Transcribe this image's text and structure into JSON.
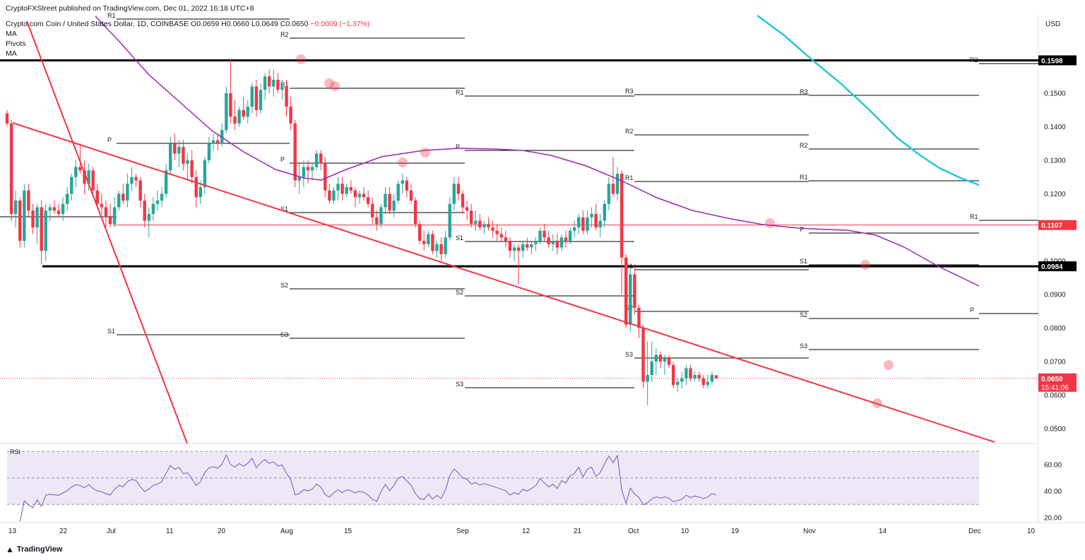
{
  "header": {
    "publisher": "CryptoFXStreet published on TradingView.com, Dec 01, 2022 16:18 UTC+8",
    "symbol": "Crypto.com Coin / United States Dollar, 1D, COINBASE",
    "ohlc_open": "O0.0659",
    "ohlc_high": "H0.0660",
    "ohlc_low": "L0.0649",
    "ohlc_close": "C0.0650",
    "ohlc_change": "−0.0009 (−1.37%)",
    "indicators": [
      "MA",
      "Pivots",
      "MA"
    ]
  },
  "currency": "USD",
  "footer_logo": "TradingView",
  "colors": {
    "up": "#26a69a",
    "down": "#f23645",
    "ma_slow": "#26c6da",
    "ma_fast": "#9c27b0",
    "trendline": "#f23645",
    "rsi": "#7e57c2",
    "rsi_band": "#ede7f6"
  },
  "chart_data": {
    "type": "candlestick",
    "y_axis_labels": [
      "0.1500",
      "0.1400",
      "0.1300",
      "0.1200",
      "0.1000",
      "0.0900",
      "0.0800",
      "0.0700",
      "0.0600",
      "0.0500"
    ],
    "ylim": [
      0.045,
      0.1715
    ],
    "x_axis_labels": [
      "13",
      "22",
      "Jul",
      "11",
      "20",
      "Aug",
      "15",
      "Sep",
      "12",
      "21",
      "Oct",
      "10",
      "19",
      "Nov",
      "14",
      "Dec",
      "10"
    ],
    "price_tags": {
      "upper_level": "0.1598",
      "red_level": "0.1107",
      "lower_level": "0.0984",
      "last_price": "0.0650",
      "countdown": "15:41:06"
    },
    "horizontal_levels": [
      0.1598,
      0.0984,
      0.1107
    ],
    "candles": [
      [
        0.144,
        0.145,
        0.14,
        0.141
      ],
      [
        0.141,
        0.142,
        0.112,
        0.114
      ],
      [
        0.114,
        0.121,
        0.11,
        0.118
      ],
      [
        0.118,
        0.119,
        0.104,
        0.106
      ],
      [
        0.106,
        0.123,
        0.104,
        0.121
      ],
      [
        0.121,
        0.123,
        0.113,
        0.115
      ],
      [
        0.115,
        0.117,
        0.108,
        0.11
      ],
      [
        0.11,
        0.117,
        0.105,
        0.116
      ],
      [
        0.116,
        0.118,
        0.099,
        0.103
      ],
      [
        0.103,
        0.117,
        0.1,
        0.115
      ],
      [
        0.115,
        0.117,
        0.112,
        0.116
      ],
      [
        0.116,
        0.118,
        0.114,
        0.115
      ],
      [
        0.115,
        0.117,
        0.113,
        0.114
      ],
      [
        0.114,
        0.119,
        0.112,
        0.117
      ],
      [
        0.117,
        0.122,
        0.115,
        0.12
      ],
      [
        0.12,
        0.126,
        0.118,
        0.125
      ],
      [
        0.125,
        0.13,
        0.122,
        0.128
      ],
      [
        0.128,
        0.135,
        0.126,
        0.127
      ],
      [
        0.127,
        0.13,
        0.12,
        0.123
      ],
      [
        0.123,
        0.129,
        0.121,
        0.127
      ],
      [
        0.127,
        0.128,
        0.12,
        0.121
      ],
      [
        0.121,
        0.123,
        0.116,
        0.117
      ],
      [
        0.117,
        0.12,
        0.114,
        0.116
      ],
      [
        0.116,
        0.118,
        0.11,
        0.113
      ],
      [
        0.113,
        0.117,
        0.11,
        0.111
      ],
      [
        0.111,
        0.119,
        0.11,
        0.116
      ],
      [
        0.116,
        0.121,
        0.115,
        0.12
      ],
      [
        0.12,
        0.123,
        0.117,
        0.118
      ],
      [
        0.118,
        0.126,
        0.116,
        0.123
      ],
      [
        0.123,
        0.128,
        0.121,
        0.125
      ],
      [
        0.125,
        0.126,
        0.122,
        0.124
      ],
      [
        0.124,
        0.125,
        0.116,
        0.118
      ],
      [
        0.118,
        0.12,
        0.11,
        0.112
      ],
      [
        0.112,
        0.116,
        0.107,
        0.114
      ],
      [
        0.114,
        0.119,
        0.112,
        0.117
      ],
      [
        0.117,
        0.121,
        0.115,
        0.118
      ],
      [
        0.118,
        0.122,
        0.116,
        0.12
      ],
      [
        0.12,
        0.129,
        0.119,
        0.127
      ],
      [
        0.127,
        0.137,
        0.126,
        0.135
      ],
      [
        0.135,
        0.138,
        0.13,
        0.132
      ],
      [
        0.132,
        0.136,
        0.128,
        0.134
      ],
      [
        0.134,
        0.136,
        0.127,
        0.129
      ],
      [
        0.129,
        0.132,
        0.124,
        0.13
      ],
      [
        0.13,
        0.133,
        0.123,
        0.125
      ],
      [
        0.125,
        0.127,
        0.116,
        0.119
      ],
      [
        0.119,
        0.124,
        0.117,
        0.122
      ],
      [
        0.122,
        0.131,
        0.12,
        0.13
      ],
      [
        0.13,
        0.137,
        0.129,
        0.135
      ],
      [
        0.135,
        0.138,
        0.133,
        0.136
      ],
      [
        0.136,
        0.138,
        0.133,
        0.135
      ],
      [
        0.135,
        0.141,
        0.134,
        0.139
      ],
      [
        0.139,
        0.152,
        0.138,
        0.15
      ],
      [
        0.15,
        0.16,
        0.141,
        0.143
      ],
      [
        0.143,
        0.148,
        0.139,
        0.141
      ],
      [
        0.141,
        0.146,
        0.14,
        0.145
      ],
      [
        0.145,
        0.149,
        0.142,
        0.143
      ],
      [
        0.143,
        0.148,
        0.141,
        0.146
      ],
      [
        0.146,
        0.153,
        0.144,
        0.152
      ],
      [
        0.152,
        0.154,
        0.143,
        0.145
      ],
      [
        0.145,
        0.153,
        0.144,
        0.151
      ],
      [
        0.151,
        0.156,
        0.148,
        0.155
      ],
      [
        0.155,
        0.157,
        0.15,
        0.152
      ],
      [
        0.152,
        0.157,
        0.149,
        0.154
      ],
      [
        0.154,
        0.156,
        0.15,
        0.151
      ],
      [
        0.151,
        0.154,
        0.148,
        0.152
      ],
      [
        0.152,
        0.154,
        0.143,
        0.146
      ],
      [
        0.146,
        0.149,
        0.139,
        0.141
      ],
      [
        0.141,
        0.142,
        0.122,
        0.124
      ],
      [
        0.124,
        0.129,
        0.12,
        0.125
      ],
      [
        0.125,
        0.13,
        0.122,
        0.128
      ],
      [
        0.128,
        0.13,
        0.123,
        0.127
      ],
      [
        0.127,
        0.129,
        0.124,
        0.128
      ],
      [
        0.128,
        0.133,
        0.127,
        0.132
      ],
      [
        0.132,
        0.133,
        0.127,
        0.129
      ],
      [
        0.129,
        0.131,
        0.119,
        0.121
      ],
      [
        0.121,
        0.123,
        0.117,
        0.118
      ],
      [
        0.118,
        0.122,
        0.117,
        0.121
      ],
      [
        0.121,
        0.125,
        0.118,
        0.123
      ],
      [
        0.123,
        0.125,
        0.118,
        0.12
      ],
      [
        0.12,
        0.123,
        0.119,
        0.122
      ],
      [
        0.122,
        0.124,
        0.12,
        0.121
      ],
      [
        0.121,
        0.122,
        0.116,
        0.119
      ],
      [
        0.119,
        0.121,
        0.117,
        0.12
      ],
      [
        0.12,
        0.122,
        0.118,
        0.119
      ],
      [
        0.119,
        0.121,
        0.116,
        0.117
      ],
      [
        0.117,
        0.119,
        0.111,
        0.113
      ],
      [
        0.113,
        0.115,
        0.109,
        0.111
      ],
      [
        0.111,
        0.117,
        0.11,
        0.116
      ],
      [
        0.116,
        0.122,
        0.114,
        0.12
      ],
      [
        0.12,
        0.122,
        0.114,
        0.115
      ],
      [
        0.115,
        0.12,
        0.113,
        0.118
      ],
      [
        0.118,
        0.124,
        0.117,
        0.123
      ],
      [
        0.123,
        0.126,
        0.12,
        0.124
      ],
      [
        0.124,
        0.125,
        0.119,
        0.121
      ],
      [
        0.121,
        0.123,
        0.117,
        0.118
      ],
      [
        0.118,
        0.119,
        0.11,
        0.111
      ],
      [
        0.111,
        0.112,
        0.105,
        0.106
      ],
      [
        0.106,
        0.109,
        0.103,
        0.105
      ],
      [
        0.105,
        0.109,
        0.104,
        0.108
      ],
      [
        0.108,
        0.109,
        0.102,
        0.103
      ],
      [
        0.103,
        0.106,
        0.101,
        0.105
      ],
      [
        0.105,
        0.107,
        0.1,
        0.102
      ],
      [
        0.102,
        0.109,
        0.101,
        0.107
      ],
      [
        0.107,
        0.119,
        0.106,
        0.117
      ],
      [
        0.117,
        0.125,
        0.115,
        0.123
      ],
      [
        0.123,
        0.125,
        0.118,
        0.12
      ],
      [
        0.12,
        0.121,
        0.114,
        0.116
      ],
      [
        0.116,
        0.118,
        0.112,
        0.115
      ],
      [
        0.115,
        0.117,
        0.11,
        0.111
      ],
      [
        0.111,
        0.115,
        0.109,
        0.112
      ],
      [
        0.112,
        0.114,
        0.109,
        0.11
      ],
      [
        0.11,
        0.112,
        0.108,
        0.111
      ],
      [
        0.111,
        0.113,
        0.109,
        0.11
      ],
      [
        0.11,
        0.112,
        0.107,
        0.109
      ],
      [
        0.109,
        0.111,
        0.106,
        0.108
      ],
      [
        0.108,
        0.11,
        0.106,
        0.107
      ],
      [
        0.107,
        0.109,
        0.104,
        0.106
      ],
      [
        0.106,
        0.107,
        0.101,
        0.103
      ],
      [
        0.103,
        0.105,
        0.1,
        0.104
      ],
      [
        0.104,
        0.105,
        0.093,
        0.103
      ],
      [
        0.103,
        0.106,
        0.101,
        0.105
      ],
      [
        0.105,
        0.107,
        0.103,
        0.104
      ],
      [
        0.104,
        0.106,
        0.102,
        0.105
      ],
      [
        0.105,
        0.107,
        0.103,
        0.106
      ],
      [
        0.106,
        0.11,
        0.105,
        0.109
      ],
      [
        0.109,
        0.111,
        0.106,
        0.107
      ],
      [
        0.107,
        0.109,
        0.104,
        0.105
      ],
      [
        0.105,
        0.108,
        0.103,
        0.106
      ],
      [
        0.106,
        0.108,
        0.102,
        0.104
      ],
      [
        0.104,
        0.108,
        0.103,
        0.107
      ],
      [
        0.107,
        0.109,
        0.104,
        0.106
      ],
      [
        0.106,
        0.11,
        0.105,
        0.109
      ],
      [
        0.109,
        0.112,
        0.107,
        0.11
      ],
      [
        0.11,
        0.114,
        0.108,
        0.113
      ],
      [
        0.113,
        0.115,
        0.108,
        0.109
      ],
      [
        0.109,
        0.115,
        0.108,
        0.113
      ],
      [
        0.113,
        0.116,
        0.11,
        0.114
      ],
      [
        0.114,
        0.117,
        0.109,
        0.11
      ],
      [
        0.11,
        0.114,
        0.107,
        0.112
      ],
      [
        0.112,
        0.118,
        0.11,
        0.117
      ],
      [
        0.117,
        0.125,
        0.115,
        0.123
      ],
      [
        0.123,
        0.131,
        0.119,
        0.12
      ],
      [
        0.12,
        0.128,
        0.118,
        0.126
      ],
      [
        0.126,
        0.127,
        0.09,
        0.101
      ],
      [
        0.101,
        0.102,
        0.08,
        0.081
      ],
      [
        0.081,
        0.098,
        0.079,
        0.096
      ],
      [
        0.096,
        0.099,
        0.084,
        0.086
      ],
      [
        0.086,
        0.087,
        0.077,
        0.08
      ],
      [
        0.08,
        0.081,
        0.062,
        0.064
      ],
      [
        0.064,
        0.076,
        0.057,
        0.066
      ],
      [
        0.066,
        0.076,
        0.064,
        0.07
      ],
      [
        0.07,
        0.074,
        0.066,
        0.072
      ],
      [
        0.072,
        0.073,
        0.068,
        0.07
      ],
      [
        0.07,
        0.072,
        0.066,
        0.071
      ],
      [
        0.071,
        0.072,
        0.068,
        0.069
      ],
      [
        0.069,
        0.07,
        0.062,
        0.063
      ],
      [
        0.063,
        0.065,
        0.061,
        0.064
      ],
      [
        0.064,
        0.067,
        0.062,
        0.065
      ],
      [
        0.065,
        0.069,
        0.063,
        0.068
      ],
      [
        0.068,
        0.069,
        0.064,
        0.065
      ],
      [
        0.065,
        0.067,
        0.064,
        0.066
      ],
      [
        0.066,
        0.067,
        0.064,
        0.065
      ],
      [
        0.065,
        0.066,
        0.062,
        0.063
      ],
      [
        0.063,
        0.066,
        0.062,
        0.064
      ],
      [
        0.064,
        0.067,
        0.063,
        0.066
      ],
      [
        0.0659,
        0.066,
        0.0649,
        0.065
      ]
    ],
    "rsi": {
      "label": "RSI",
      "axis_labels": [
        "60.00",
        "40.00",
        "20.00"
      ],
      "ylim": [
        17,
        71
      ],
      "band": [
        30,
        70
      ],
      "mid": 50
    }
  }
}
